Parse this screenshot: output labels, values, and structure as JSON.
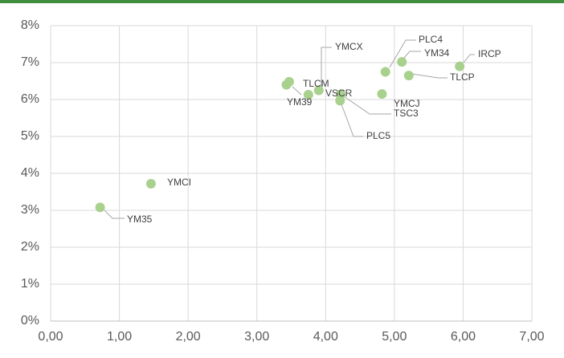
{
  "chart_data": {
    "type": "scatter",
    "color": "#a9d18e",
    "grid": true,
    "xlim": [
      0,
      7
    ],
    "ylim": [
      0,
      8
    ],
    "xticks": [
      {
        "value": 0,
        "label": "0,00"
      },
      {
        "value": 1,
        "label": "1,00"
      },
      {
        "value": 2,
        "label": "2,00"
      },
      {
        "value": 3,
        "label": "3,00"
      },
      {
        "value": 4,
        "label": "4,00"
      },
      {
        "value": 5,
        "label": "5,00"
      },
      {
        "value": 6,
        "label": "6,00"
      },
      {
        "value": 7,
        "label": "7,00"
      }
    ],
    "yticks": [
      {
        "value": 0,
        "label": "0%"
      },
      {
        "value": 1,
        "label": "1%"
      },
      {
        "value": 2,
        "label": "2%"
      },
      {
        "value": 3,
        "label": "3%"
      },
      {
        "value": 4,
        "label": "4%"
      },
      {
        "value": 5,
        "label": "5%"
      },
      {
        "value": 6,
        "label": "6%"
      },
      {
        "value": 7,
        "label": "7%"
      },
      {
        "value": 8,
        "label": "8%"
      }
    ],
    "point_labels": [
      "YM35",
      "YMCI",
      "YM39",
      "TLCM",
      "VSCR",
      "YMCX",
      "TSC3",
      "PLC5",
      "YMCJ",
      "PLC4",
      "YM34",
      "TLCP",
      "IRCP"
    ],
    "x": [
      0.72,
      1.46,
      3.43,
      3.47,
      3.75,
      3.9,
      4.22,
      4.21,
      4.82,
      4.87,
      5.11,
      5.21,
      5.95
    ],
    "values": [
      3.08,
      3.72,
      6.4,
      6.48,
      6.13,
      6.25,
      6.14,
      5.97,
      6.15,
      6.75,
      7.02,
      6.65,
      6.9
    ]
  }
}
